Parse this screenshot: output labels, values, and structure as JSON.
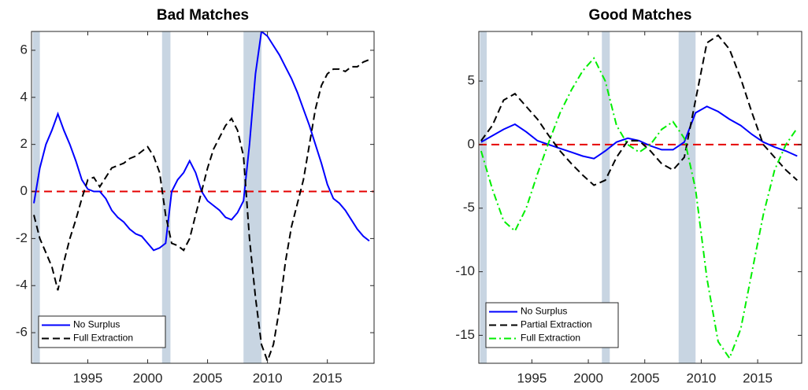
{
  "chart_data": [
    {
      "type": "line",
      "title": "Bad Matches",
      "x": [
        1990.5,
        1991,
        1991.5,
        1992,
        1992.5,
        1993,
        1993.5,
        1994,
        1994.5,
        1995,
        1995.5,
        1996,
        1996.5,
        1997,
        1997.5,
        1998,
        1998.5,
        1999,
        1999.5,
        2000,
        2000.5,
        2001,
        2001.5,
        2002,
        2002.5,
        2003,
        2003.5,
        2004,
        2004.5,
        2005,
        2005.5,
        2006,
        2006.5,
        2007,
        2007.5,
        2008,
        2008.5,
        2009,
        2009.5,
        2010,
        2010.5,
        2011,
        2011.5,
        2012,
        2012.5,
        2013,
        2013.5,
        2014,
        2014.5,
        2015,
        2015.5,
        2016,
        2016.5,
        2017,
        2017.5,
        2018,
        2018.5
      ],
      "series": [
        {
          "name": "No Surplus",
          "color": "#0000ff",
          "line_style": "solid",
          "values": [
            -0.5,
            1.0,
            2.0,
            2.6,
            3.3,
            2.6,
            2.0,
            1.3,
            0.5,
            0.1,
            0,
            0,
            -0.3,
            -0.8,
            -1.1,
            -1.3,
            -1.6,
            -1.8,
            -1.9,
            -2.2,
            -2.5,
            -2.4,
            -2.2,
            0,
            0.5,
            0.8,
            1.3,
            0.8,
            0,
            -0.4,
            -0.6,
            -0.8,
            -1.1,
            -1.2,
            -0.9,
            -0.4,
            2.0,
            5.0,
            6.8,
            6.6,
            6.2,
            5.8,
            5.3,
            4.8,
            4.2,
            3.5,
            2.8,
            2.0,
            1.2,
            0.3,
            -0.3,
            -0.5,
            -0.8,
            -1.2,
            -1.6,
            -1.9,
            -2.1
          ]
        },
        {
          "name": "Full Extraction",
          "color": "#000000",
          "line_style": "dashed",
          "values": [
            -1.0,
            -2.0,
            -2.6,
            -3.2,
            -4.2,
            -3.0,
            -2.0,
            -1.2,
            -0.3,
            0.5,
            0.6,
            0.2,
            0.6,
            1.0,
            1.1,
            1.2,
            1.4,
            1.5,
            1.7,
            1.9,
            1.5,
            0.8,
            -1.0,
            -2.2,
            -2.3,
            -2.5,
            -2.0,
            -1.0,
            0,
            1.0,
            1.8,
            2.3,
            2.8,
            3.1,
            2.6,
            1.5,
            -2.0,
            -4.5,
            -6.5,
            -7.2,
            -6.5,
            -5.0,
            -3.0,
            -1.5,
            -0.5,
            0.5,
            2.0,
            3.5,
            4.5,
            5.0,
            5.2,
            5.2,
            5.1,
            5.3,
            5.3,
            5.5,
            5.6
          ]
        }
      ],
      "xlim": [
        1990.3,
        2018.9
      ],
      "xticks": [
        1995,
        2000,
        2005,
        2010,
        2015
      ],
      "ylim": [
        -7.3,
        6.8
      ],
      "yticks": [
        -6,
        -4,
        -2,
        0,
        2,
        4,
        6
      ],
      "reference_line": 0,
      "reference_color": "#e60000",
      "shaded_ranges": [
        [
          1990.4,
          1991.0
        ],
        [
          2001.2,
          2001.9
        ],
        [
          2008.0,
          2009.5
        ]
      ],
      "shade_color": "#c8d5e2",
      "legend": "lower left"
    },
    {
      "type": "line",
      "title": "Good Matches",
      "x": [
        1990.5,
        1991.5,
        1992.5,
        1993.5,
        1994.5,
        1995.5,
        1996.5,
        1997.5,
        1998.5,
        1999.5,
        2000.5,
        2001.5,
        2002.5,
        2003.5,
        2004.5,
        2005.5,
        2006.5,
        2007.5,
        2008.5,
        2009.5,
        2010.5,
        2011.5,
        2012.5,
        2013.5,
        2014.5,
        2015.5,
        2016.5,
        2017.5,
        2018.5
      ],
      "series": [
        {
          "name": "No Surplus",
          "color": "#0000ff",
          "line_style": "solid",
          "values": [
            0.2,
            0.7,
            1.2,
            1.6,
            1.0,
            0.3,
            0.0,
            -0.3,
            -0.6,
            -0.9,
            -1.1,
            -0.5,
            0.2,
            0.5,
            0.3,
            -0.1,
            -0.4,
            -0.4,
            0.2,
            2.5,
            3.0,
            2.6,
            2.0,
            1.5,
            0.8,
            0.2,
            -0.2,
            -0.5,
            -0.9
          ]
        },
        {
          "name": "Partial Extraction",
          "color": "#000000",
          "line_style": "dashed",
          "values": [
            0.3,
            1.5,
            3.5,
            4.0,
            3.0,
            2.0,
            0.7,
            -0.5,
            -1.5,
            -2.4,
            -3.2,
            -2.8,
            -1.0,
            0.3,
            0.3,
            -0.5,
            -1.5,
            -2.0,
            -1.0,
            3.5,
            8.0,
            8.6,
            7.5,
            5.2,
            2.5,
            0.0,
            -1.0,
            -2.0,
            -2.8
          ]
        },
        {
          "name": "Full Extraction",
          "color": "#00ee00",
          "line_style": "dashdot",
          "values": [
            -0.5,
            -3.5,
            -6.0,
            -6.8,
            -5.0,
            -2.3,
            0.2,
            2.5,
            4.3,
            5.8,
            6.8,
            5.0,
            1.5,
            0.0,
            -0.6,
            0.0,
            1.2,
            1.8,
            0.5,
            -3.5,
            -10.5,
            -15.5,
            -16.8,
            -14.5,
            -10.0,
            -5.5,
            -2.0,
            0.0,
            1.3
          ]
        }
      ],
      "xlim": [
        1990.3,
        2018.9
      ],
      "xticks": [
        1995,
        2000,
        2005,
        2010,
        2015
      ],
      "ylim": [
        -17.2,
        8.9
      ],
      "yticks": [
        -15,
        -10,
        -5,
        0,
        5
      ],
      "reference_line": 0,
      "reference_color": "#e60000",
      "shaded_ranges": [
        [
          1990.4,
          1991.0
        ],
        [
          2001.2,
          2001.9
        ],
        [
          2008.0,
          2009.5
        ]
      ],
      "shade_color": "#c8d5e2",
      "legend": "lower left"
    }
  ]
}
